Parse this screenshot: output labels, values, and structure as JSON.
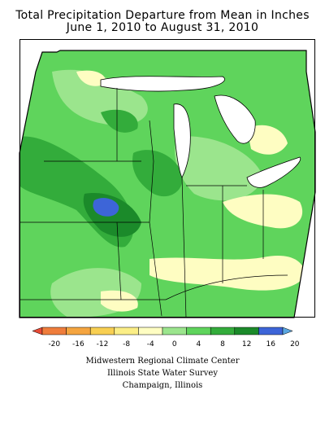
{
  "header": {
    "title": "Total Precipitation Departure from Mean in Inches",
    "subtitle": "June 1, 2010 to August 31, 2010"
  },
  "legend": {
    "labels": [
      "-20",
      "-16",
      "-12",
      "-8",
      "-4",
      "0",
      "4",
      "8",
      "12",
      "16",
      "20"
    ],
    "bins": [
      {
        "color": "#e84a35"
      },
      {
        "color": "#ef7d3c"
      },
      {
        "color": "#f5a540"
      },
      {
        "color": "#f8cf52"
      },
      {
        "color": "#fbee86"
      },
      {
        "color": "#fefdc2"
      },
      {
        "color": "#9be58d"
      },
      {
        "color": "#5fd45c"
      },
      {
        "color": "#33ac3b"
      },
      {
        "color": "#1b8a2a"
      },
      {
        "color": "#3d65d8"
      },
      {
        "color": "#5aa6e0"
      }
    ]
  },
  "credits": {
    "line1": "Midwestern Regional Climate Center",
    "line2": "Illinois State Water Survey",
    "line3": "Champaign, Illinois"
  },
  "map": {
    "region": "Midwestern United States",
    "dominant_color": "#5fd45c",
    "wettest_color": "#3d65d8",
    "driest_color": "#fefdc2",
    "lake_color": "#ffffff",
    "boundary_color": "#000000"
  }
}
